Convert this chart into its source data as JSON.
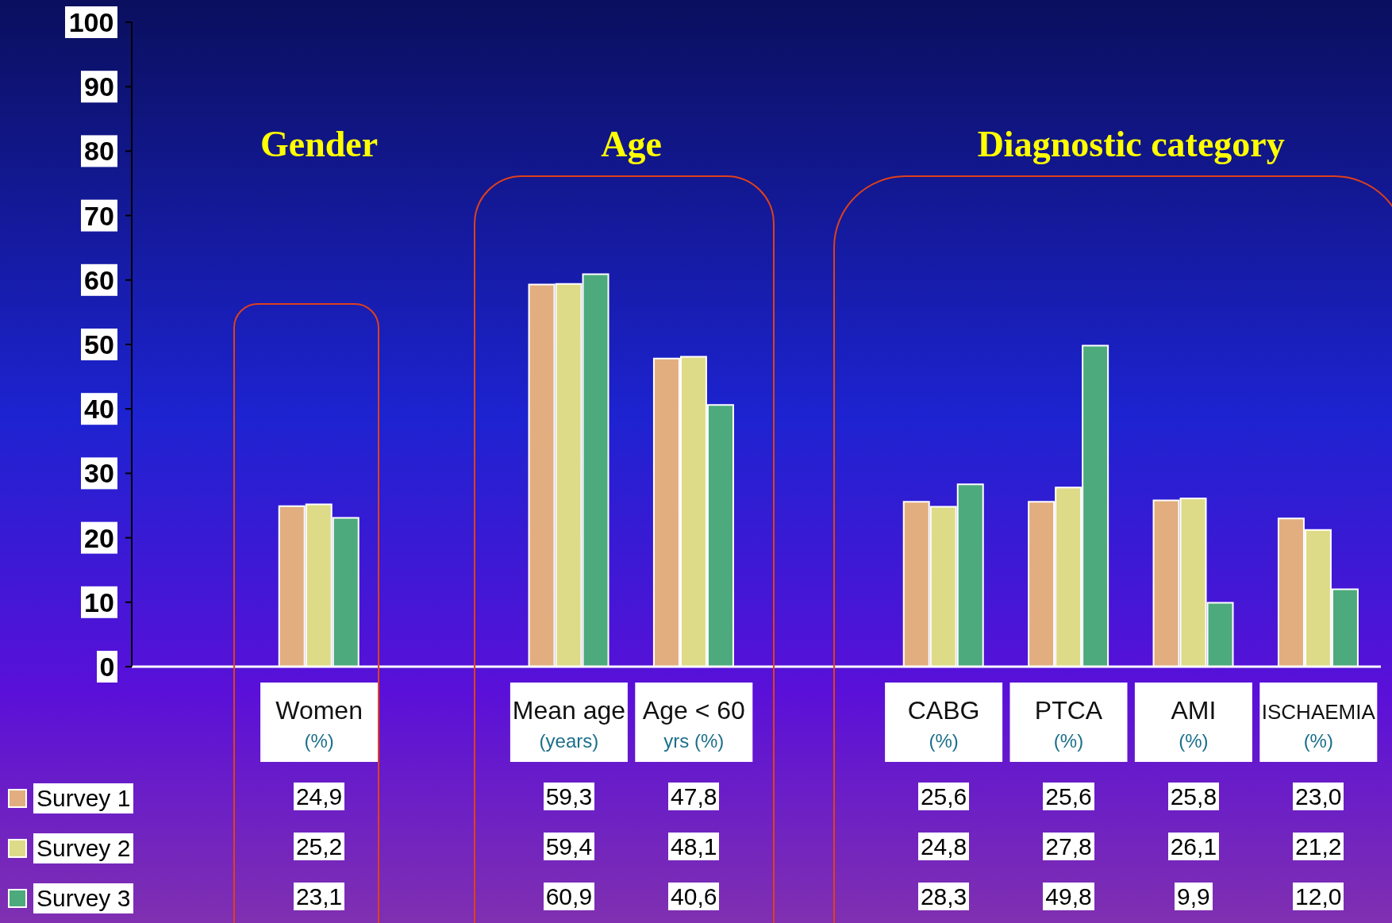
{
  "chart_data": {
    "type": "bar",
    "categories": [
      null,
      "Women\n(%)",
      null,
      "Mean age\n(years)",
      "Age < 60\nyrs (%)",
      null,
      "CABG\n(%)",
      "PTCA\n(%)",
      "AMI\n(%)",
      "ISCHAEMIA\n(%)"
    ],
    "series": [
      {
        "name": "Survey 1",
        "color": "#e2ae80",
        "values": [
          null,
          24.9,
          null,
          59.3,
          47.8,
          null,
          25.6,
          25.6,
          25.8,
          23.0
        ],
        "value_labels": [
          null,
          "24,9",
          null,
          "59,3",
          "47,8",
          null,
          "25,6",
          "25,6",
          "25,8",
          "23,0"
        ]
      },
      {
        "name": "Survey 2",
        "color": "#dedb88",
        "values": [
          null,
          25.2,
          null,
          59.4,
          48.1,
          null,
          24.8,
          27.8,
          26.1,
          21.2
        ],
        "value_labels": [
          null,
          "25,2",
          null,
          "59,4",
          "48,1",
          null,
          "24,8",
          "27,8",
          "26,1",
          "21,2"
        ]
      },
      {
        "name": "Survey 3",
        "color": "#4daa7c",
        "values": [
          null,
          23.1,
          null,
          60.9,
          40.6,
          null,
          28.3,
          49.8,
          9.9,
          12.0
        ],
        "value_labels": [
          null,
          "23,1",
          null,
          "60,9",
          "40,6",
          null,
          "28,3",
          "49,8",
          "9,9",
          "12,0"
        ]
      }
    ],
    "annotations": [
      "Gender",
      "Age",
      "Diagnostic category"
    ],
    "ylim": [
      0,
      100
    ],
    "yticks": [
      0,
      10,
      20,
      30,
      40,
      50,
      60,
      70,
      80,
      90,
      100
    ],
    "grid": false,
    "legend": "bottom left"
  }
}
